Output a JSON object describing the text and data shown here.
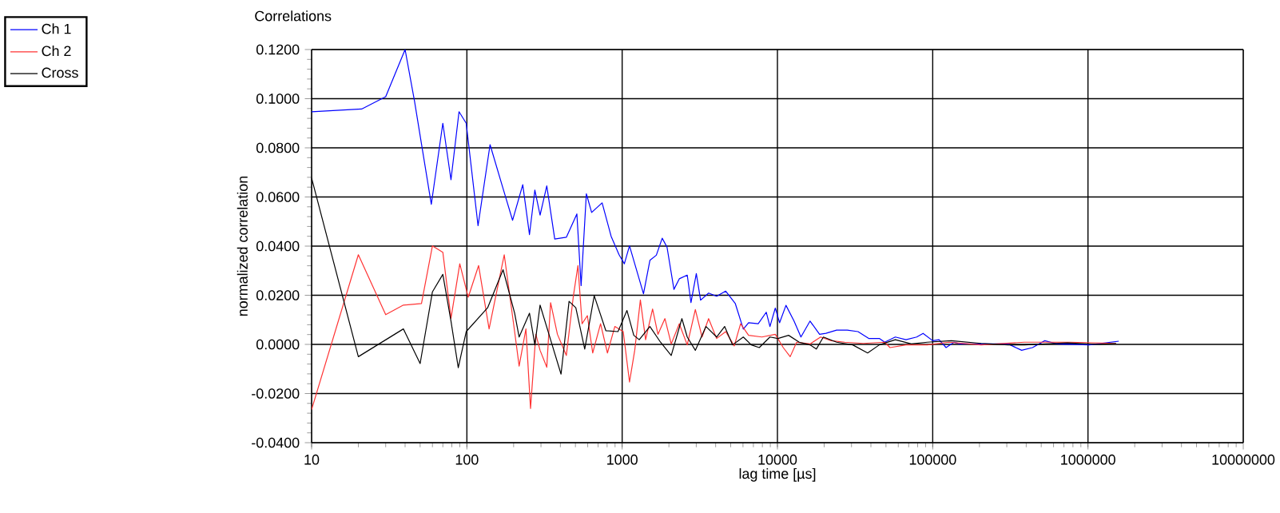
{
  "chart_data": {
    "type": "line",
    "title": "Correlations",
    "xlabel": "lag time [µs]",
    "ylabel": "normalized correlation",
    "log": "x",
    "grid": true,
    "legend": "top left",
    "xlim": [
      10,
      10000000
    ],
    "xticks": [
      10,
      100,
      1000,
      10000,
      100000,
      1000000,
      10000000
    ],
    "ylim": [
      -0.04,
      0.12
    ],
    "yticks": [
      {
        "value": -0.04,
        "label": "-0.0400"
      },
      {
        "value": -0.02,
        "label": "-0.0200"
      },
      {
        "value": 0,
        "label": "0.0000"
      },
      {
        "value": 0.02,
        "label": "0.0200"
      },
      {
        "value": 0.04,
        "label": "0.0400"
      },
      {
        "value": 0.06,
        "label": "0.0600"
      },
      {
        "value": 0.08,
        "label": "0.0800"
      },
      {
        "value": 0.1,
        "label": "0.1000"
      },
      {
        "value": 0.12,
        "label": "0.1200"
      }
    ],
    "series": [
      {
        "name": "Ch 1",
        "color": "#0000ff",
        "x": [
          10,
          21,
          30,
          40,
          46,
          59,
          70,
          79,
          89,
          99,
          118,
          141,
          169,
          197,
          229,
          253,
          274,
          296,
          327,
          368,
          437,
          511,
          544,
          588,
          636,
          743,
          849,
          955,
          1033,
          1115,
          1372,
          1509,
          1660,
          1811,
          1945,
          2155,
          2333,
          2625,
          2775,
          3003,
          3200,
          3604,
          4059,
          4645,
          5355,
          6030,
          6520,
          7520,
          8470,
          8950,
          9690,
          10320,
          11350,
          12790,
          14170,
          16220,
          18680,
          20530,
          24050,
          28180,
          33030,
          38710,
          45300,
          49070,
          57450,
          67300,
          78900,
          86700,
          100000,
          109900,
          121900,
          137100,
          149000,
          205000,
          306000,
          374000,
          439000,
          527000,
          629000,
          1016000,
          1578000
        ],
        "values": [
          0.0947,
          0.0958,
          0.1008,
          0.12,
          0.099,
          0.057,
          0.09,
          0.067,
          0.0947,
          0.09,
          0.0483,
          0.0813,
          0.0645,
          0.0505,
          0.065,
          0.0447,
          0.0628,
          0.0526,
          0.0645,
          0.0429,
          0.0436,
          0.0531,
          0.0239,
          0.0613,
          0.0537,
          0.0576,
          0.044,
          0.0365,
          0.0328,
          0.0401,
          0.0206,
          0.0342,
          0.0363,
          0.0432,
          0.0396,
          0.0224,
          0.0267,
          0.0282,
          0.017,
          0.0288,
          0.018,
          0.0209,
          0.0196,
          0.0217,
          0.0166,
          0.0062,
          0.0088,
          0.0084,
          0.0131,
          0.0073,
          0.0148,
          0.0088,
          0.0159,
          0.0095,
          0.003,
          0.0095,
          0.0041,
          0.0045,
          0.0058,
          0.0058,
          0.0052,
          0.0024,
          0.0024,
          0.0009,
          0.003,
          0.0019,
          0.003,
          0.0045,
          0.0015,
          0.0019,
          -0.0013,
          0.0009,
          0.0002,
          0.0002,
          0.0002,
          -0.0024,
          -0.0013,
          0.0015,
          0.0002,
          -0.0002,
          0.0013
        ]
      },
      {
        "name": "Ch 2",
        "color": "#ff3333",
        "x": [
          10,
          20,
          30,
          39,
          51,
          60,
          70,
          79,
          90,
          102,
          119,
          139,
          174,
          203,
          217,
          240,
          257,
          278,
          296,
          327,
          346,
          383,
          437,
          484,
          519,
          552,
          597,
          646,
          726,
          804,
          897,
          1016,
          1115,
          1205,
          1310,
          1416,
          1570,
          1700,
          1885,
          2070,
          2333,
          2625,
          2960,
          3270,
          3604,
          4059,
          4645,
          5270,
          5790,
          6520,
          7940,
          9690,
          10900,
          12080,
          13300,
          16220,
          18980,
          22220,
          27100,
          35700,
          49070,
          53100,
          67300,
          92400,
          126800,
          205000,
          389000,
          768000,
          1517000
        ],
        "values": [
          -0.0265,
          0.0365,
          0.0121,
          0.016,
          0.0166,
          0.0401,
          0.0375,
          0.0106,
          0.0328,
          0.0192,
          0.0321,
          0.0063,
          0.0365,
          0.0052,
          -0.0088,
          0.0063,
          -0.0261,
          0.0041,
          -0.0024,
          -0.0093,
          0.017,
          0.0041,
          -0.0045,
          0.0192,
          0.0321,
          0.0084,
          0.0117,
          -0.0035,
          0.0084,
          -0.0035,
          0.0073,
          0.0052,
          -0.0153,
          -0.0024,
          0.0181,
          0.0019,
          0.0144,
          0.0041,
          0.0105,
          0.0002,
          0.0084,
          -0.0002,
          0.0142,
          0.003,
          0.0105,
          0.0024,
          0.0052,
          -0.0006,
          0.0084,
          0.0037,
          0.003,
          0.0041,
          -0.0013,
          -0.005,
          0.0009,
          0.0002,
          0.003,
          0.0015,
          0.0009,
          0.0004,
          0.0009,
          -0.0013,
          -0.0002,
          -0.0002,
          0.0009,
          -0.0002,
          0.0009,
          0.0009,
          0.0004
        ]
      },
      {
        "name": "Cross",
        "color": "#000000",
        "x": [
          10,
          20,
          39,
          50,
          60,
          70,
          79,
          88,
          99,
          136,
          171,
          203,
          217,
          253,
          274,
          296,
          346,
          404,
          455,
          503,
          574,
          661,
          785,
          940,
          1074,
          1188,
          1288,
          1509,
          1766,
          2070,
          2425,
          2625,
          2960,
          3467,
          4059,
          4570,
          5140,
          6030,
          6790,
          7640,
          8950,
          10070,
          11800,
          13820,
          16220,
          17800,
          19770,
          24050,
          30550,
          38100,
          45300,
          57450,
          72900,
          92400,
          131800,
          205000,
          306000,
          389000,
          738000,
          1191000,
          1517000
        ],
        "values": [
          0.0677,
          -0.005,
          0.0063,
          -0.0078,
          0.0214,
          0.0285,
          0.0095,
          -0.0095,
          0.0052,
          0.0149,
          0.0304,
          0.0127,
          0.003,
          0.0127,
          -0.0002,
          0.016,
          0.0019,
          -0.0121,
          0.0175,
          0.0149,
          -0.0019,
          0.0198,
          0.0056,
          0.0052,
          0.0138,
          0.0037,
          0.0019,
          0.0073,
          0.0009,
          -0.0045,
          0.0105,
          0.003,
          -0.0024,
          0.0073,
          0.003,
          0.0073,
          -0.0002,
          0.003,
          -0.0002,
          -0.0013,
          0.003,
          0.0024,
          0.0037,
          0.0009,
          -0.0002,
          -0.0019,
          0.003,
          0.0009,
          -0.0002,
          -0.0035,
          -0.0002,
          0.0019,
          0.0002,
          0.0009,
          0.0015,
          0.0004,
          -0.0002,
          -0.0002,
          0.0006,
          0,
          0.0004
        ]
      }
    ]
  }
}
